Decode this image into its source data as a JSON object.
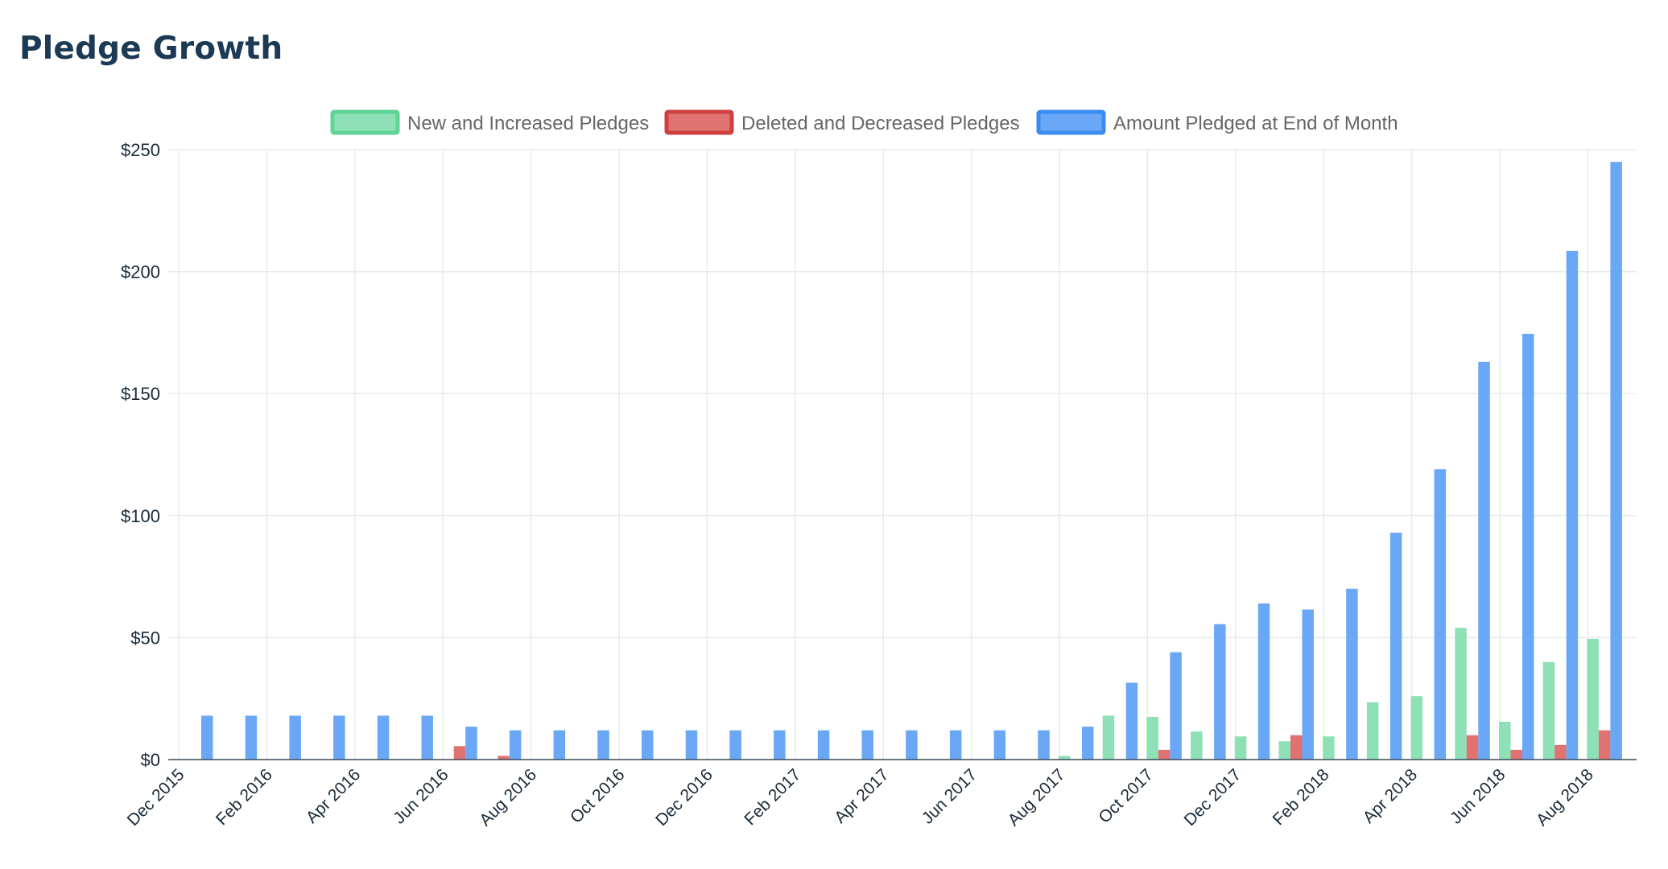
{
  "page": {
    "title": "Pledge Growth"
  },
  "colors": {
    "new": "#8ee0b6",
    "new_border": "#5fd497",
    "deleted": "#e07272",
    "deleted_border": "#cf3f3f",
    "amount": "#6aa8f7",
    "amount_border": "#3b8cf0"
  },
  "chart_data": {
    "type": "bar",
    "title": "Pledge Growth",
    "xlabel": "",
    "ylabel": "",
    "ylim": [
      0,
      250
    ],
    "y_ticks": [
      "$0",
      "$50",
      "$100",
      "$150",
      "$200",
      "$250"
    ],
    "y_tick_values": [
      0,
      50,
      100,
      150,
      200,
      250
    ],
    "x_tick_labels": [
      "Dec 2015",
      "Feb 2016",
      "Apr 2016",
      "Jun 2016",
      "Aug 2016",
      "Oct 2016",
      "Dec 2016",
      "Feb 2017",
      "Apr 2017",
      "Jun 2017",
      "Aug 2017",
      "Oct 2017",
      "Dec 2017",
      "Feb 2018",
      "Apr 2018",
      "Jun 2018",
      "Aug 2018"
    ],
    "grid": true,
    "legend_position": "top-center",
    "categories": [
      "Dec 2015",
      "Jan 2016",
      "Feb 2016",
      "Mar 2016",
      "Apr 2016",
      "May 2016",
      "Jun 2016",
      "Jul 2016",
      "Aug 2016",
      "Sep 2016",
      "Oct 2016",
      "Nov 2016",
      "Dec 2016",
      "Jan 2017",
      "Feb 2017",
      "Mar 2017",
      "Apr 2017",
      "May 2017",
      "Jun 2017",
      "Jul 2017",
      "Aug 2017",
      "Sep 2017",
      "Oct 2017",
      "Nov 2017",
      "Dec 2017",
      "Jan 2018",
      "Feb 2018",
      "Mar 2018",
      "Apr 2018",
      "May 2018",
      "Jun 2018",
      "Jul 2018",
      "Aug 2018"
    ],
    "series": [
      {
        "name": "New and Increased Pledges",
        "values": [
          0,
          0,
          0,
          0,
          0,
          0,
          0,
          0,
          0,
          0,
          0,
          0,
          0,
          0,
          0,
          0,
          0,
          0,
          0,
          0,
          1.5,
          18,
          17.5,
          11.5,
          9.5,
          7.5,
          9.5,
          23.5,
          26,
          54,
          15.5,
          40,
          49.5
        ]
      },
      {
        "name": "Deleted and Decreased Pledges",
        "values": [
          0,
          0,
          0,
          0,
          0,
          0,
          5.5,
          1.5,
          0,
          0,
          0,
          0,
          0,
          0,
          0,
          0,
          0,
          0,
          0,
          0,
          0,
          0,
          4,
          0,
          0,
          10,
          0,
          0,
          0,
          10,
          4,
          6,
          12
        ]
      },
      {
        "name": "Amount Pledged at End of Month",
        "values": [
          18,
          18,
          18,
          18,
          18,
          18,
          13.5,
          12,
          12,
          12,
          12,
          12,
          12,
          12,
          12,
          12,
          12,
          12,
          12,
          12,
          13.5,
          31.5,
          44,
          55.5,
          64,
          61.5,
          70,
          93,
          119,
          163,
          174.5,
          208.5,
          245
        ]
      }
    ]
  }
}
